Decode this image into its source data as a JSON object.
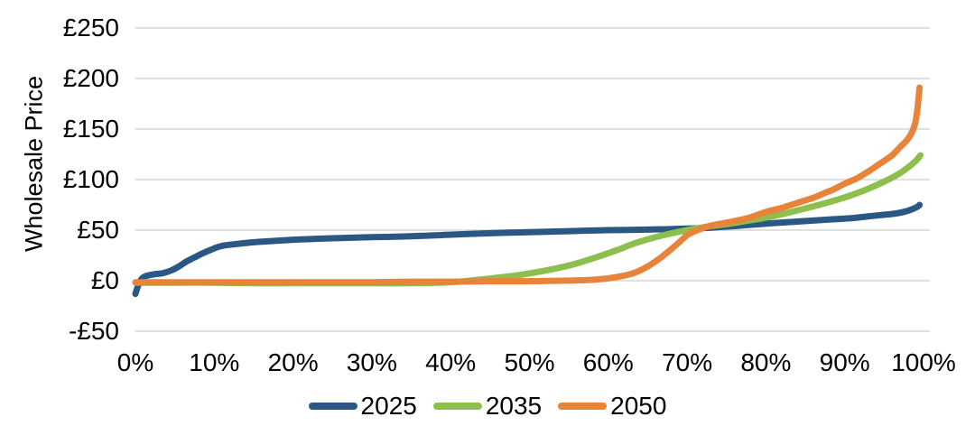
{
  "chart_data": {
    "type": "line",
    "title": "",
    "xlabel": "",
    "ylabel": "Wholesale Price",
    "x_unit": "percent of hours",
    "y_unit": "GBP",
    "xlim": [
      0,
      100
    ],
    "ylim": [
      -50,
      250
    ],
    "x_ticks": [
      "0%",
      "10%",
      "20%",
      "30%",
      "40%",
      "50%",
      "60%",
      "70%",
      "80%",
      "90%",
      "100%"
    ],
    "x_tick_values": [
      0,
      10,
      20,
      30,
      40,
      50,
      60,
      70,
      80,
      90,
      100
    ],
    "y_ticks": [
      "£250",
      "£200",
      "£150",
      "£100",
      "£50",
      "£0",
      "-£50"
    ],
    "y_tick_values": [
      250,
      200,
      150,
      100,
      50,
      0,
      -50
    ],
    "grid": "horizontal",
    "grid_color": "#DCDCDC",
    "background_color": "#ffffff",
    "text_color": "#000000",
    "legend_position": "bottom",
    "line_width": 7,
    "series": [
      {
        "name": "2025",
        "color": "#2A5784",
        "points": [
          [
            0,
            -13
          ],
          [
            0.3,
            -6
          ],
          [
            0.8,
            2
          ],
          [
            1.5,
            5
          ],
          [
            2.5,
            6.5
          ],
          [
            3.5,
            7.5
          ],
          [
            4.5,
            10
          ],
          [
            5.5,
            14
          ],
          [
            6.5,
            19
          ],
          [
            7.5,
            23
          ],
          [
            8.5,
            27
          ],
          [
            10,
            32
          ],
          [
            11,
            34.5
          ],
          [
            12.5,
            36
          ],
          [
            15,
            38
          ],
          [
            17,
            39
          ],
          [
            20,
            40.5
          ],
          [
            25,
            42
          ],
          [
            30,
            43
          ],
          [
            35,
            44
          ],
          [
            40,
            45.5
          ],
          [
            45,
            47
          ],
          [
            50,
            48
          ],
          [
            55,
            49
          ],
          [
            60,
            50
          ],
          [
            65,
            50.5
          ],
          [
            70,
            51.5
          ],
          [
            73,
            52.5
          ],
          [
            76,
            54
          ],
          [
            80,
            56.5
          ],
          [
            84,
            58.5
          ],
          [
            88,
            60.5
          ],
          [
            91,
            62
          ],
          [
            94,
            64.5
          ],
          [
            96,
            66
          ],
          [
            97.5,
            68
          ],
          [
            98.5,
            70.5
          ],
          [
            99.2,
            73
          ],
          [
            99.5,
            75
          ]
        ]
      },
      {
        "name": "2035",
        "color": "#8CBF4D",
        "points": [
          [
            0,
            -2
          ],
          [
            5,
            -2
          ],
          [
            10,
            -2
          ],
          [
            15,
            -2.5
          ],
          [
            20,
            -2.5
          ],
          [
            25,
            -2.5
          ],
          [
            30,
            -2.5
          ],
          [
            35,
            -2.5
          ],
          [
            40,
            -1.5
          ],
          [
            43,
            0.5
          ],
          [
            46,
            3
          ],
          [
            49,
            6
          ],
          [
            52,
            10
          ],
          [
            55,
            15
          ],
          [
            58,
            22
          ],
          [
            61,
            30
          ],
          [
            63,
            36
          ],
          [
            65,
            41
          ],
          [
            67,
            45
          ],
          [
            69,
            48.5
          ],
          [
            71,
            51.5
          ],
          [
            73,
            54
          ],
          [
            75,
            56
          ],
          [
            77,
            58.5
          ],
          [
            79,
            61
          ],
          [
            81,
            64
          ],
          [
            83,
            67.5
          ],
          [
            85,
            71.5
          ],
          [
            87,
            75.5
          ],
          [
            89,
            80
          ],
          [
            91,
            85
          ],
          [
            93,
            91
          ],
          [
            95,
            98
          ],
          [
            96.5,
            104
          ],
          [
            97.5,
            109
          ],
          [
            98.5,
            115
          ],
          [
            99.2,
            120
          ],
          [
            99.6,
            124
          ]
        ]
      },
      {
        "name": "2050",
        "color": "#E8833A",
        "points": [
          [
            0,
            -1.5
          ],
          [
            5,
            -1.5
          ],
          [
            10,
            -1.5
          ],
          [
            15,
            -1.5
          ],
          [
            20,
            -1.5
          ],
          [
            25,
            -1.5
          ],
          [
            30,
            -1.5
          ],
          [
            35,
            -1
          ],
          [
            40,
            -1
          ],
          [
            45,
            -0.5
          ],
          [
            50,
            -0.5
          ],
          [
            54,
            0
          ],
          [
            57,
            0.5
          ],
          [
            59,
            1.5
          ],
          [
            61,
            3.5
          ],
          [
            63,
            7
          ],
          [
            64.5,
            12
          ],
          [
            66,
            19
          ],
          [
            67.5,
            28
          ],
          [
            69,
            38
          ],
          [
            70,
            45
          ],
          [
            71,
            49
          ],
          [
            72,
            52
          ],
          [
            73,
            54.5
          ],
          [
            74,
            56
          ],
          [
            76,
            59
          ],
          [
            78,
            62.5
          ],
          [
            80,
            68
          ],
          [
            82,
            72
          ],
          [
            84,
            77
          ],
          [
            86,
            82
          ],
          [
            87.5,
            87
          ],
          [
            88.5,
            90
          ],
          [
            90,
            96
          ],
          [
            91.5,
            101
          ],
          [
            93,
            108
          ],
          [
            94.5,
            116
          ],
          [
            96,
            124
          ],
          [
            97,
            132
          ],
          [
            98,
            140
          ],
          [
            98.6,
            148
          ],
          [
            99,
            158
          ],
          [
            99.3,
            175
          ],
          [
            99.5,
            191
          ]
        ]
      }
    ]
  }
}
